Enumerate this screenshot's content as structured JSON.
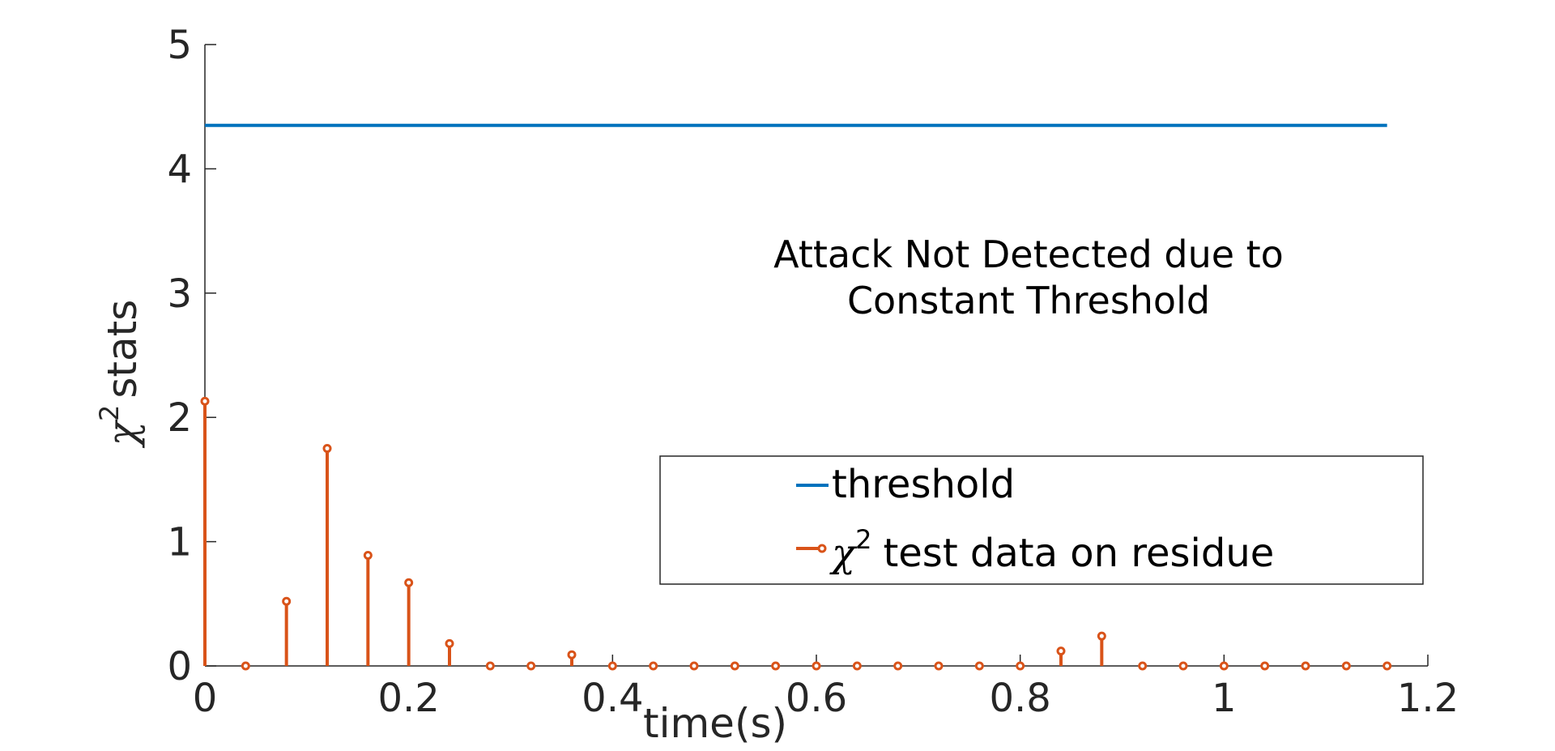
{
  "chart_data": {
    "type": "stem",
    "xlabel": "time(s)",
    "ylabel": "stats",
    "ylabel_symbol": "χ",
    "superscript": "2",
    "xlim": [
      0,
      1.2
    ],
    "ylim": [
      0,
      5
    ],
    "xticks": [
      "0",
      "0.2",
      "0.4",
      "0.6",
      "0.8",
      "1",
      "1.2"
    ],
    "yticks": [
      "0",
      "1",
      "2",
      "3",
      "4",
      "5"
    ],
    "annotation": [
      "Attack Not Detected due to",
      "Constant Threshold"
    ],
    "legend": {
      "position": "center-right",
      "entries": [
        "threshold",
        "test data on residue"
      ]
    },
    "colors": {
      "threshold": "#0072BD",
      "stem": "#D95319",
      "axis": "#262626"
    },
    "series": [
      {
        "name": "threshold",
        "type": "line",
        "x": [
          0,
          1.16
        ],
        "y": [
          4.35,
          4.35
        ]
      },
      {
        "name": "test data on residue",
        "type": "stem",
        "x": [
          0,
          0.04,
          0.08,
          0.12,
          0.16,
          0.2,
          0.24,
          0.28,
          0.32,
          0.36,
          0.4,
          0.44,
          0.48,
          0.52,
          0.56,
          0.6,
          0.64,
          0.68,
          0.72,
          0.76,
          0.8,
          0.84,
          0.88,
          0.92,
          0.96,
          1.0,
          1.04,
          1.08,
          1.12,
          1.16
        ],
        "y": [
          2.13,
          0.0,
          0.52,
          1.75,
          0.89,
          0.67,
          0.18,
          0.0,
          0.0,
          0.09,
          0.0,
          0.0,
          0.0,
          0.0,
          0.0,
          0.0,
          0.0,
          0.0,
          0.0,
          0.0,
          0.0,
          0.12,
          0.24,
          0.0,
          0.0,
          0.0,
          0.0,
          0.0,
          0.0,
          0.0
        ]
      }
    ]
  }
}
